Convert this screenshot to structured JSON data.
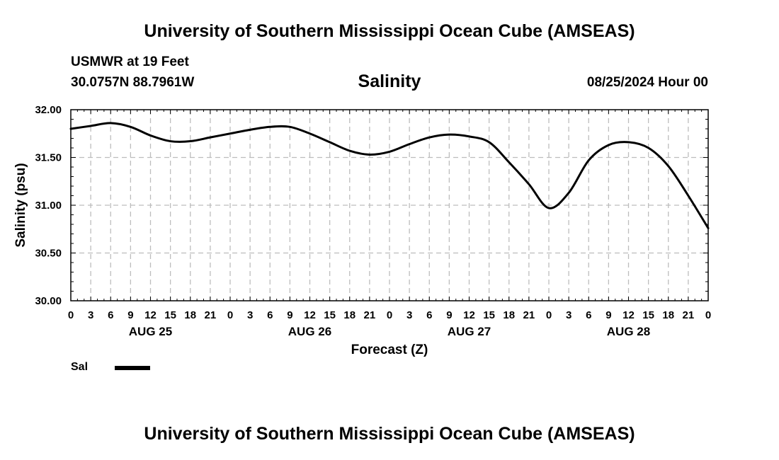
{
  "header": {
    "title": "University of Southern Mississippi Ocean Cube (AMSEAS)",
    "station": "USMWR at 19 Feet",
    "coords": "30.0757N  88.7961W",
    "datetime": "08/25/2024 Hour 00"
  },
  "footer": {
    "title": "University of Southern Mississippi Ocean Cube (AMSEAS)"
  },
  "legend": {
    "label": "Sal",
    "color": "#000000"
  },
  "chart_data": {
    "type": "line",
    "title": "Salinity",
    "xlabel": "Forecast (Z)",
    "ylabel": "Salinity (psu)",
    "xlim": [
      0,
      96
    ],
    "ylim": [
      30.0,
      32.0
    ],
    "x_ticks": [
      0,
      3,
      6,
      9,
      12,
      15,
      18,
      21,
      24,
      27,
      30,
      33,
      36,
      39,
      42,
      45,
      48,
      51,
      54,
      57,
      60,
      63,
      66,
      69,
      72,
      75,
      78,
      81,
      84,
      87,
      90,
      93,
      96
    ],
    "x_tick_labels": [
      "0",
      "3",
      "6",
      "9",
      "12",
      "15",
      "18",
      "21",
      "0",
      "3",
      "6",
      "9",
      "12",
      "15",
      "18",
      "21",
      "0",
      "3",
      "6",
      "9",
      "12",
      "15",
      "18",
      "21",
      "0",
      "3",
      "6",
      "9",
      "12",
      "15",
      "18",
      "21",
      "0"
    ],
    "y_ticks": [
      30.0,
      30.5,
      31.0,
      31.5,
      32.0
    ],
    "y_tick_labels": [
      "30.00",
      "30.50",
      "31.00",
      "31.50",
      "32.00"
    ],
    "day_labels": [
      {
        "text": "AUG 25",
        "x": 12
      },
      {
        "text": "AUG 26",
        "x": 36
      },
      {
        "text": "AUG 27",
        "x": 60
      },
      {
        "text": "AUG 28",
        "x": 84
      }
    ],
    "grid": true,
    "series": [
      {
        "name": "Sal",
        "x": [
          0,
          3,
          6,
          9,
          12,
          15,
          18,
          21,
          24,
          27,
          30,
          33,
          36,
          39,
          42,
          45,
          48,
          51,
          54,
          57,
          60,
          63,
          66,
          69,
          72,
          75,
          78,
          81,
          84,
          87,
          90,
          93,
          96
        ],
        "values": [
          31.8,
          31.83,
          31.86,
          31.82,
          31.73,
          31.67,
          31.67,
          31.71,
          31.75,
          31.79,
          31.82,
          31.82,
          31.75,
          31.66,
          31.57,
          31.53,
          31.56,
          31.64,
          31.71,
          31.74,
          31.72,
          31.66,
          31.45,
          31.22,
          30.97,
          31.13,
          31.47,
          31.63,
          31.66,
          31.6,
          31.41,
          31.1,
          30.76
        ]
      }
    ]
  }
}
